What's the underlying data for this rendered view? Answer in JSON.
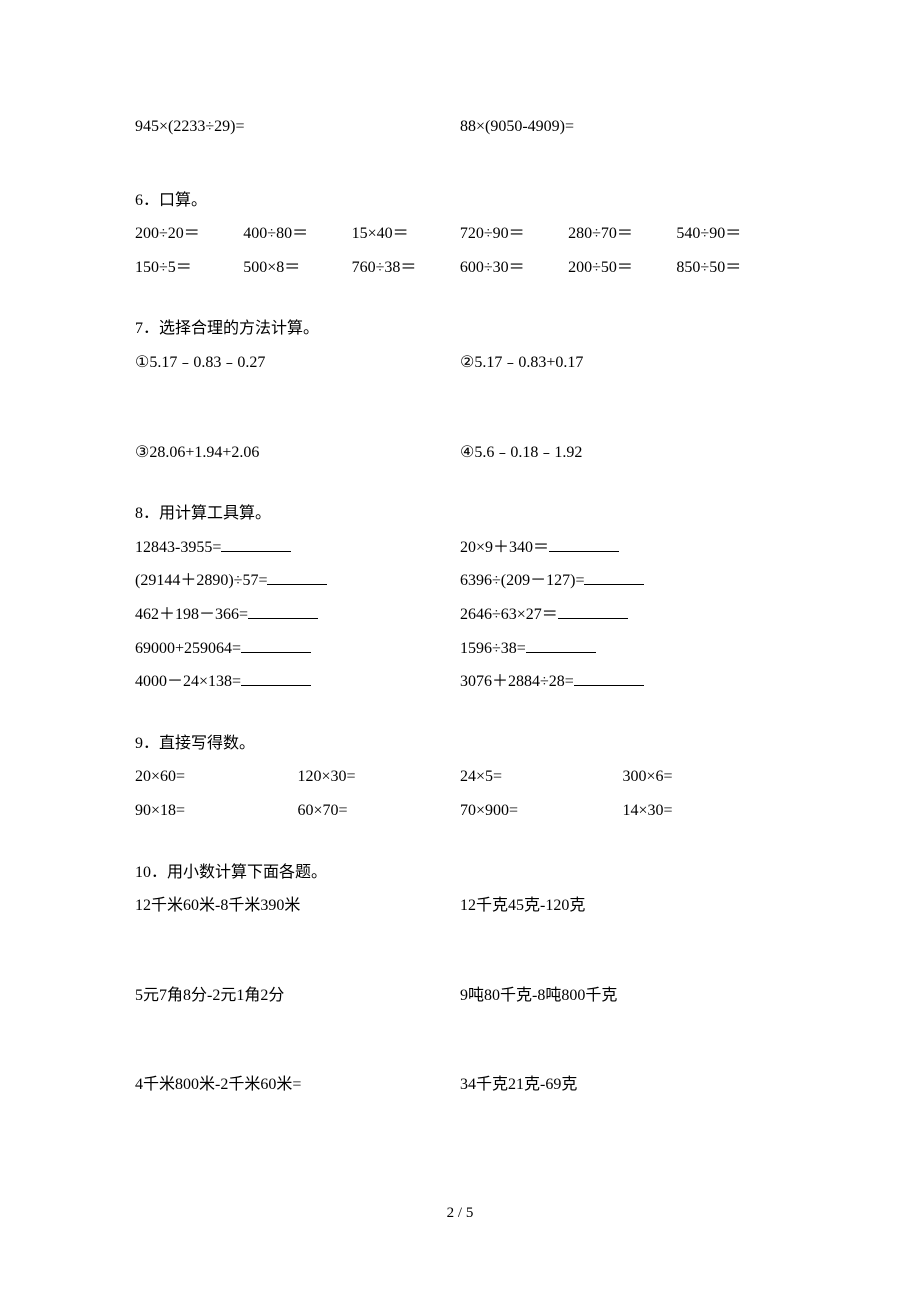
{
  "q5": {
    "left": "945×(2233÷29)=",
    "right": "88×(9050-4909)="
  },
  "q6": {
    "title": "6．口算。",
    "row1": [
      "200÷20＝",
      "400÷80＝",
      "15×40＝",
      "720÷90＝",
      "280÷70＝",
      "540÷90＝"
    ],
    "row2": [
      "150÷5＝",
      "500×8＝",
      "760÷38＝",
      "600÷30＝",
      "200÷50＝",
      "850÷50＝"
    ]
  },
  "q7": {
    "title": "7．选择合理的方法计算。",
    "a": "①5.17﹣0.83﹣0.27",
    "b": "②5.17﹣0.83+0.17",
    "c": "③28.06+1.94+2.06",
    "d": "④5.6﹣0.18﹣1.92"
  },
  "q8": {
    "title": "8．用计算工具算。",
    "rows": [
      {
        "l": "12843-3955=",
        "r": "20×9＋340＝"
      },
      {
        "l": "(29144＋2890)÷57=",
        "r": "6396÷(209－127)="
      },
      {
        "l": "462＋198－366=",
        "r": "2646÷63×27＝"
      },
      {
        "l": "69000+259064=",
        "r": "1596÷38="
      },
      {
        "l": "4000－24×138=",
        "r": "3076＋2884÷28="
      }
    ]
  },
  "q9": {
    "title": "9．直接写得数。",
    "row1": [
      "20×60=",
      "120×30=",
      "24×5=",
      "300×6="
    ],
    "row2": [
      "90×18=",
      "60×70=",
      "70×900=",
      "14×30="
    ]
  },
  "q10": {
    "title": "10．用小数计算下面各题。",
    "a": "12千米60米-8千米390米",
    "b": "12千克45克-120克",
    "c": "5元7角8分-2元1角2分",
    "d": "9吨80千克-8吨800千克",
    "e": "4千米800米-2千米60米=",
    "f": "34千克21克-69克"
  },
  "footer": "2 / 5"
}
